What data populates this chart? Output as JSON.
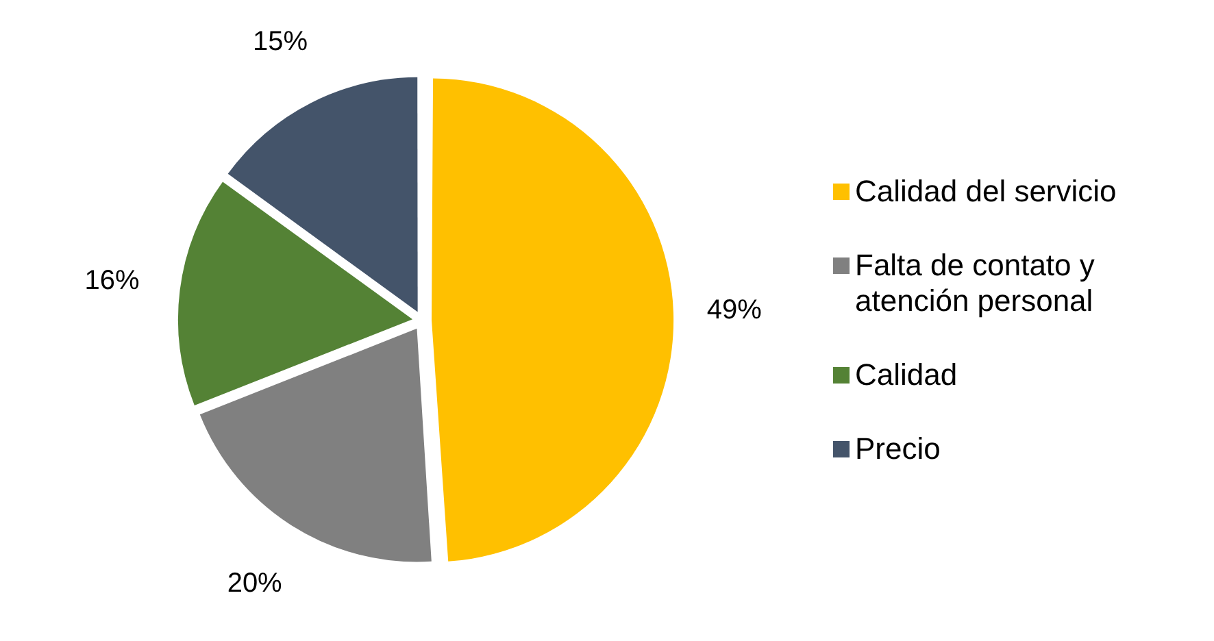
{
  "chart_data": {
    "type": "pie",
    "categories": [
      "Calidad del servicio",
      "Falta de contato y atención personal",
      "Calidad",
      "Precio"
    ],
    "values": [
      49,
      20,
      16,
      15
    ],
    "colors": [
      "#ffc000",
      "#808080",
      "#548235",
      "#44546a"
    ],
    "value_labels": [
      "49%",
      "20%",
      "16%",
      "15%"
    ],
    "legend": "right"
  }
}
